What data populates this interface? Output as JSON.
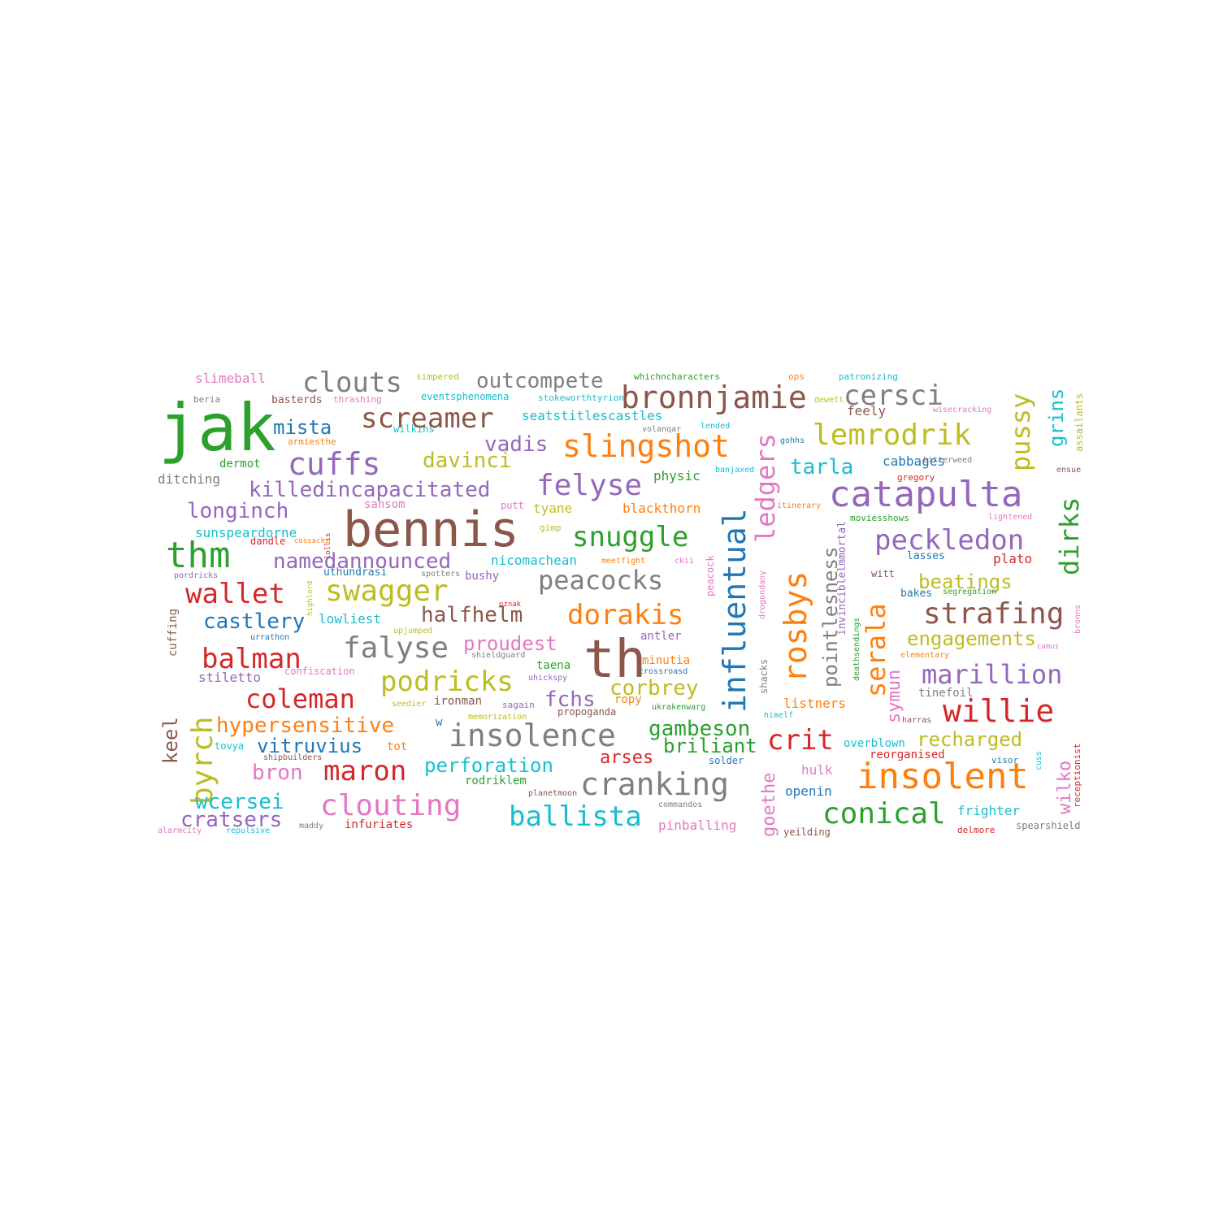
{
  "colors": {
    "blue": "#1f77b4",
    "orange": "#ff7f0e",
    "green": "#2ca02c",
    "red": "#d62728",
    "purple": "#9467bd",
    "brown": "#8c564b",
    "pink": "#e377c2",
    "gray": "#7f7f7f",
    "olive": "#bcbd22",
    "cyan": "#17becf"
  },
  "words": [
    {
      "text": "jak",
      "color": "green"
    },
    {
      "text": "bennis",
      "color": "brown"
    },
    {
      "text": "th",
      "color": "brown"
    },
    {
      "text": "catapulta",
      "color": "purple"
    },
    {
      "text": "insolent",
      "color": "orange"
    },
    {
      "text": "thm",
      "color": "green"
    },
    {
      "text": "bronnjamie",
      "color": "brown"
    },
    {
      "text": "slingshot",
      "color": "orange"
    },
    {
      "text": "insolence",
      "color": "gray"
    },
    {
      "text": "cranking",
      "color": "gray"
    },
    {
      "text": "influentual",
      "color": "blue"
    },
    {
      "text": "rosbys",
      "color": "orange"
    },
    {
      "text": "willie",
      "color": "red"
    },
    {
      "text": "clouts",
      "color": "gray"
    },
    {
      "text": "cersci",
      "color": "gray"
    },
    {
      "text": "screamer",
      "color": "brown"
    },
    {
      "text": "lemrodrik",
      "color": "olive"
    },
    {
      "text": "cuffs",
      "color": "purple"
    },
    {
      "text": "felyse",
      "color": "purple"
    },
    {
      "text": "snuggle",
      "color": "green"
    },
    {
      "text": "peckledon",
      "color": "purple"
    },
    {
      "text": "swagger",
      "color": "olive"
    },
    {
      "text": "falyse",
      "color": "gray"
    },
    {
      "text": "dorakis",
      "color": "orange"
    },
    {
      "text": "strafing",
      "color": "brown"
    },
    {
      "text": "podricks",
      "color": "olive"
    },
    {
      "text": "clouting",
      "color": "pink"
    },
    {
      "text": "ballista",
      "color": "cyan"
    },
    {
      "text": "conical",
      "color": "green"
    },
    {
      "text": "marillion",
      "color": "purple"
    },
    {
      "text": "balman",
      "color": "red"
    },
    {
      "text": "coleman",
      "color": "red"
    },
    {
      "text": "maron",
      "color": "red"
    },
    {
      "text": "wallet",
      "color": "red"
    },
    {
      "text": "crit",
      "color": "red"
    },
    {
      "text": "peacocks",
      "color": "gray"
    },
    {
      "text": "byrch",
      "color": "olive"
    },
    {
      "text": "pussy",
      "color": "olive"
    },
    {
      "text": "dirks",
      "color": "green"
    },
    {
      "text": "serala",
      "color": "orange"
    },
    {
      "text": "ledgers",
      "color": "pink"
    },
    {
      "text": "outcompete",
      "color": "gray"
    },
    {
      "text": "killedincapacitated",
      "color": "purple"
    },
    {
      "text": "longinch",
      "color": "purple"
    },
    {
      "text": "namedannounced",
      "color": "purple"
    },
    {
      "text": "davinci",
      "color": "olive"
    },
    {
      "text": "vadis",
      "color": "purple"
    },
    {
      "text": "halfhelm",
      "color": "brown"
    },
    {
      "text": "castlery",
      "color": "blue"
    },
    {
      "text": "mista",
      "color": "blue"
    },
    {
      "text": "tarla",
      "color": "cyan"
    },
    {
      "text": "proudest",
      "color": "pink"
    },
    {
      "text": "fchs",
      "color": "purple"
    },
    {
      "text": "corbrey",
      "color": "olive"
    },
    {
      "text": "hypersensitive",
      "color": "orange"
    },
    {
      "text": "vitruvius",
      "color": "blue"
    },
    {
      "text": "bron",
      "color": "pink"
    },
    {
      "text": "perforation",
      "color": "cyan"
    },
    {
      "text": "wcersei",
      "color": "cyan"
    },
    {
      "text": "cratsers",
      "color": "purple"
    },
    {
      "text": "gambeson",
      "color": "green"
    },
    {
      "text": "briliant",
      "color": "green"
    },
    {
      "text": "arses",
      "color": "red"
    },
    {
      "text": "beatings",
      "color": "olive"
    },
    {
      "text": "engagements",
      "color": "olive"
    },
    {
      "text": "recharged",
      "color": "olive"
    },
    {
      "text": "pointlesness",
      "color": "gray"
    },
    {
      "text": "grins",
      "color": "cyan"
    },
    {
      "text": "keel",
      "color": "brown"
    },
    {
      "text": "wilko",
      "color": "pink"
    },
    {
      "text": "goethe",
      "color": "pink"
    },
    {
      "text": "symun",
      "color": "pink"
    },
    {
      "text": "listners",
      "color": "orange"
    },
    {
      "text": "frighter",
      "color": "cyan"
    },
    {
      "text": "openin",
      "color": "blue"
    },
    {
      "text": "hulk",
      "color": "pink"
    },
    {
      "text": "overblown",
      "color": "cyan"
    },
    {
      "text": "reorganised",
      "color": "red"
    },
    {
      "text": "tinefoil",
      "color": "gray"
    },
    {
      "text": "lowliest",
      "color": "cyan"
    },
    {
      "text": "stiletto",
      "color": "purple"
    },
    {
      "text": "sunspeardorne",
      "color": "cyan"
    },
    {
      "text": "blackthorn",
      "color": "orange"
    },
    {
      "text": "nicomachean",
      "color": "cyan"
    },
    {
      "text": "plato",
      "color": "red"
    },
    {
      "text": "lasses",
      "color": "blue"
    },
    {
      "text": "bakes",
      "color": "blue"
    },
    {
      "text": "cabbages",
      "color": "blue"
    },
    {
      "text": "gregory",
      "color": "red"
    },
    {
      "text": "feely",
      "color": "brown"
    },
    {
      "text": "seatstitlescastles",
      "color": "cyan"
    },
    {
      "text": "eventsphenomena",
      "color": "cyan"
    },
    {
      "text": "physic",
      "color": "green"
    },
    {
      "text": "tyane",
      "color": "olive"
    },
    {
      "text": "taena",
      "color": "green"
    },
    {
      "text": "minutia",
      "color": "orange"
    },
    {
      "text": "antler",
      "color": "purple"
    },
    {
      "text": "ropy",
      "color": "orange"
    },
    {
      "text": "solder",
      "color": "blue"
    },
    {
      "text": "ironman",
      "color": "brown"
    },
    {
      "text": "rodriklem",
      "color": "green"
    },
    {
      "text": "tot",
      "color": "orange"
    },
    {
      "text": "infuriates",
      "color": "red"
    },
    {
      "text": "pinballing",
      "color": "pink"
    },
    {
      "text": "spearshield",
      "color": "gray"
    },
    {
      "text": "visor",
      "color": "blue"
    },
    {
      "text": "yeilding",
      "color": "brown"
    },
    {
      "text": "delmore",
      "color": "red"
    },
    {
      "text": "slimeball",
      "color": "pink"
    },
    {
      "text": "basterds",
      "color": "brown"
    },
    {
      "text": "dermot",
      "color": "green"
    },
    {
      "text": "ditching",
      "color": "gray"
    },
    {
      "text": "sansom",
      "color": "pink"
    },
    {
      "text": "putt",
      "color": "pink"
    },
    {
      "text": "dandle",
      "color": "red"
    },
    {
      "text": "bushy",
      "color": "purple"
    },
    {
      "text": "confiscation",
      "color": "pink"
    },
    {
      "text": "propoganda",
      "color": "brown"
    },
    {
      "text": "uthundrasi",
      "color": "blue"
    },
    {
      "text": "wilkins",
      "color": "cyan"
    },
    {
      "text": "simpered",
      "color": "olive"
    },
    {
      "text": "thrashing",
      "color": "pink"
    },
    {
      "text": "beria",
      "color": "gray"
    },
    {
      "text": "armiesthe",
      "color": "orange"
    },
    {
      "text": "stokeworthtyrion",
      "color": "cyan"
    },
    {
      "text": "whichncharacters",
      "color": "green"
    },
    {
      "text": "ops",
      "color": "orange"
    },
    {
      "text": "patronizing",
      "color": "cyan"
    },
    {
      "text": "dewett",
      "color": "olive"
    },
    {
      "text": "wisecracking",
      "color": "pink"
    },
    {
      "text": "assailants",
      "color": "olive"
    },
    {
      "text": "volanqar",
      "color": "gray"
    },
    {
      "text": "lended",
      "color": "cyan"
    },
    {
      "text": "gohhs",
      "color": "blue"
    },
    {
      "text": "bitterweed",
      "color": "gray"
    },
    {
      "text": "ensue",
      "color": "brown"
    },
    {
      "text": "banjaxed",
      "color": "cyan"
    },
    {
      "text": "itinerary",
      "color": "orange"
    },
    {
      "text": "lightened",
      "color": "pink"
    },
    {
      "text": "moviesshows",
      "color": "green"
    },
    {
      "text": "gimp",
      "color": "olive"
    },
    {
      "text": "meetfight",
      "color": "orange"
    },
    {
      "text": "ckii",
      "color": "pink"
    },
    {
      "text": "peacock",
      "color": "pink"
    },
    {
      "text": "drogondany",
      "color": "pink"
    },
    {
      "text": "invinciblelmmortal",
      "color": "purple"
    },
    {
      "text": "deathsendings",
      "color": "green"
    },
    {
      "text": "witt",
      "color": "brown"
    },
    {
      "text": "segregation",
      "color": "green"
    },
    {
      "text": "bronns",
      "color": "pink"
    },
    {
      "text": "camus",
      "color": "pink"
    },
    {
      "text": "elementary",
      "color": "orange"
    },
    {
      "text": "upjumped",
      "color": "olive"
    },
    {
      "text": "oznak",
      "color": "red"
    },
    {
      "text": "shieldguard",
      "color": "gray"
    },
    {
      "text": "uhickspy",
      "color": "purple"
    },
    {
      "text": "crossroasd",
      "color": "blue"
    },
    {
      "text": "shacks",
      "color": "gray"
    },
    {
      "text": "sagain",
      "color": "purple"
    },
    {
      "text": "seedier",
      "color": "olive"
    },
    {
      "text": "memorization",
      "color": "olive"
    },
    {
      "text": "ukrakenwarg",
      "color": "green"
    },
    {
      "text": "himelf",
      "color": "cyan"
    },
    {
      "text": "harras",
      "color": "brown"
    },
    {
      "text": "receptionist",
      "color": "red"
    },
    {
      "text": "cuss",
      "color": "cyan"
    },
    {
      "text": "commandos",
      "color": "gray"
    },
    {
      "text": "planetmoon",
      "color": "brown"
    },
    {
      "text": "tovya",
      "color": "cyan"
    },
    {
      "text": "shipbuilders",
      "color": "brown"
    },
    {
      "text": "alarmcity",
      "color": "pink"
    },
    {
      "text": "repulsive",
      "color": "cyan"
    },
    {
      "text": "maddy",
      "color": "gray"
    },
    {
      "text": "pordricks",
      "color": "purple"
    },
    {
      "text": "cossacks",
      "color": "orange"
    },
    {
      "text": "lollis",
      "color": "red"
    },
    {
      "text": "highlord",
      "color": "olive"
    },
    {
      "text": "spotters",
      "color": "gray"
    },
    {
      "text": "urrathon",
      "color": "blue"
    },
    {
      "text": "cuffing",
      "color": "brown"
    },
    {
      "text": "w",
      "color": "blue"
    }
  ]
}
